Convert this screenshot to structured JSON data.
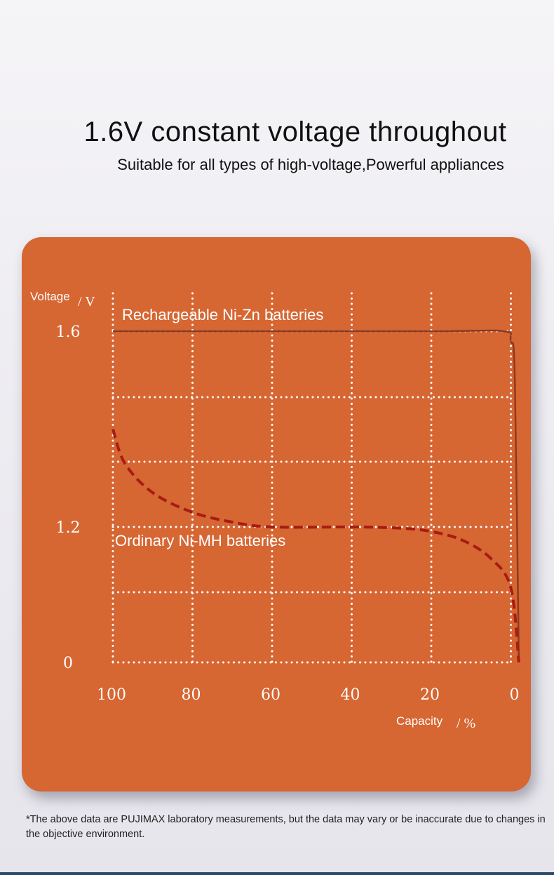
{
  "header": {
    "title": "1.6V constant voltage throughout",
    "subtitle": "Suitable for all types of high-voltage,Powerful appliances"
  },
  "footnote": "*The above data are PUJIMAX laboratory measurements, but the data may vary or be inaccurate due to changes in the objective environment.",
  "colors": {
    "panel": "#d66632",
    "nizn_line": "#8a3a22",
    "nimh_line": "#a81c14",
    "grid": "#ffffff"
  },
  "chart_data": {
    "type": "line",
    "title": "",
    "ylabel_word": "Voltage",
    "ylabel_unit": "/ V",
    "xlabel_word": "Capacity",
    "xlabel_unit": "/ %",
    "x_ticks": [
      "100",
      "80",
      "60",
      "40",
      "20",
      "0"
    ],
    "y_ticks": [
      "1.6",
      "1.2",
      "0"
    ],
    "x_direction": "decreasing",
    "grid": true,
    "grid_style": "dotted",
    "series": [
      {
        "name": "Rechargeable Ni-Zn batteries",
        "style": "solid",
        "points": [
          [
            100,
            1.6
          ],
          [
            20,
            1.6
          ],
          [
            2,
            1.6
          ],
          [
            0,
            1.58
          ],
          [
            -1,
            1.5
          ],
          [
            -2,
            0.0
          ]
        ]
      },
      {
        "name": "Ordinary Ni-MH batteries",
        "style": "dashed",
        "points": [
          [
            100,
            1.4
          ],
          [
            97,
            1.33
          ],
          [
            90,
            1.27
          ],
          [
            80,
            1.23
          ],
          [
            70,
            1.21
          ],
          [
            60,
            1.2
          ],
          [
            40,
            1.2
          ],
          [
            28,
            1.19
          ],
          [
            20,
            1.16
          ],
          [
            12,
            1.08
          ],
          [
            5,
            0.92
          ],
          [
            0,
            0.66
          ],
          [
            -2,
            0.0
          ]
        ]
      }
    ]
  }
}
